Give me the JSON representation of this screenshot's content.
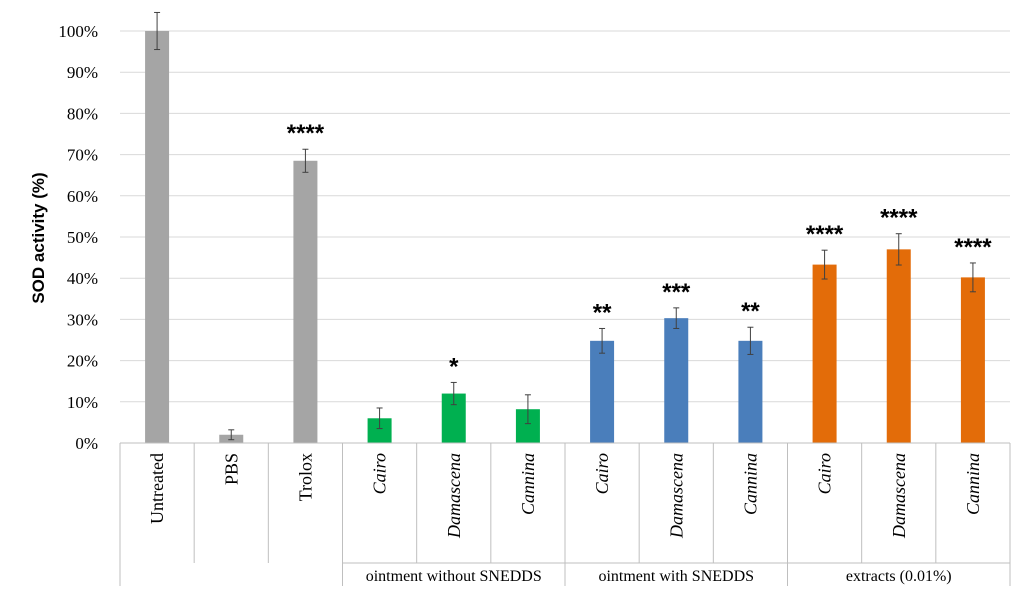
{
  "chart_data": {
    "type": "bar",
    "ylabel": "SOD activity (%)",
    "ylim": [
      0,
      100
    ],
    "yticks": [
      "0%",
      "10%",
      "20%",
      "30%",
      "40%",
      "50%",
      "60%",
      "70%",
      "80%",
      "90%",
      "100%"
    ],
    "grid": true,
    "legend": "none",
    "categories": [
      {
        "label": "Untreated",
        "italic": false,
        "value": 100,
        "error": 4.5,
        "color": "#a5a5a5",
        "significance": ""
      },
      {
        "label": "PBS",
        "italic": false,
        "value": 2,
        "error": 1.2,
        "color": "#a5a5a5",
        "significance": ""
      },
      {
        "label": "Trolox",
        "italic": false,
        "value": 68.5,
        "error": 2.8,
        "color": "#a5a5a5",
        "significance": "****"
      },
      {
        "label": "Cairo",
        "italic": true,
        "value": 6,
        "error": 2.5,
        "color": "#00b050",
        "significance": ""
      },
      {
        "label": "Damascena",
        "italic": true,
        "value": 12,
        "error": 2.7,
        "color": "#00b050",
        "significance": "*"
      },
      {
        "label": "Cannina",
        "italic": true,
        "value": 8.2,
        "error": 3.5,
        "color": "#00b050",
        "significance": ""
      },
      {
        "label": "Cairo",
        "italic": true,
        "value": 24.8,
        "error": 3.0,
        "color": "#4a7ebb",
        "significance": "**"
      },
      {
        "label": "Damascena",
        "italic": true,
        "value": 30.3,
        "error": 2.5,
        "color": "#4a7ebb",
        "significance": "***"
      },
      {
        "label": "Cannina",
        "italic": true,
        "value": 24.8,
        "error": 3.3,
        "color": "#4a7ebb",
        "significance": "**"
      },
      {
        "label": "Cairo",
        "italic": true,
        "value": 43.3,
        "error": 3.5,
        "color": "#e36c09",
        "significance": "****"
      },
      {
        "label": "Damascena",
        "italic": true,
        "value": 47,
        "error": 3.8,
        "color": "#e36c09",
        "significance": "****"
      },
      {
        "label": "Cannina",
        "italic": true,
        "value": 40.2,
        "error": 3.5,
        "color": "#e36c09",
        "significance": "****"
      }
    ],
    "groups": [
      {
        "label": "ointment without SNEDDS",
        "start": 3,
        "end": 5
      },
      {
        "label": "ointment with SNEDDS",
        "start": 6,
        "end": 8
      },
      {
        "label": "extracts (0.01%)",
        "start": 9,
        "end": 11
      }
    ],
    "colors": {
      "grid": "#d9d9d9",
      "axis": "#bfbfbf",
      "errorbar": "#404040"
    }
  }
}
